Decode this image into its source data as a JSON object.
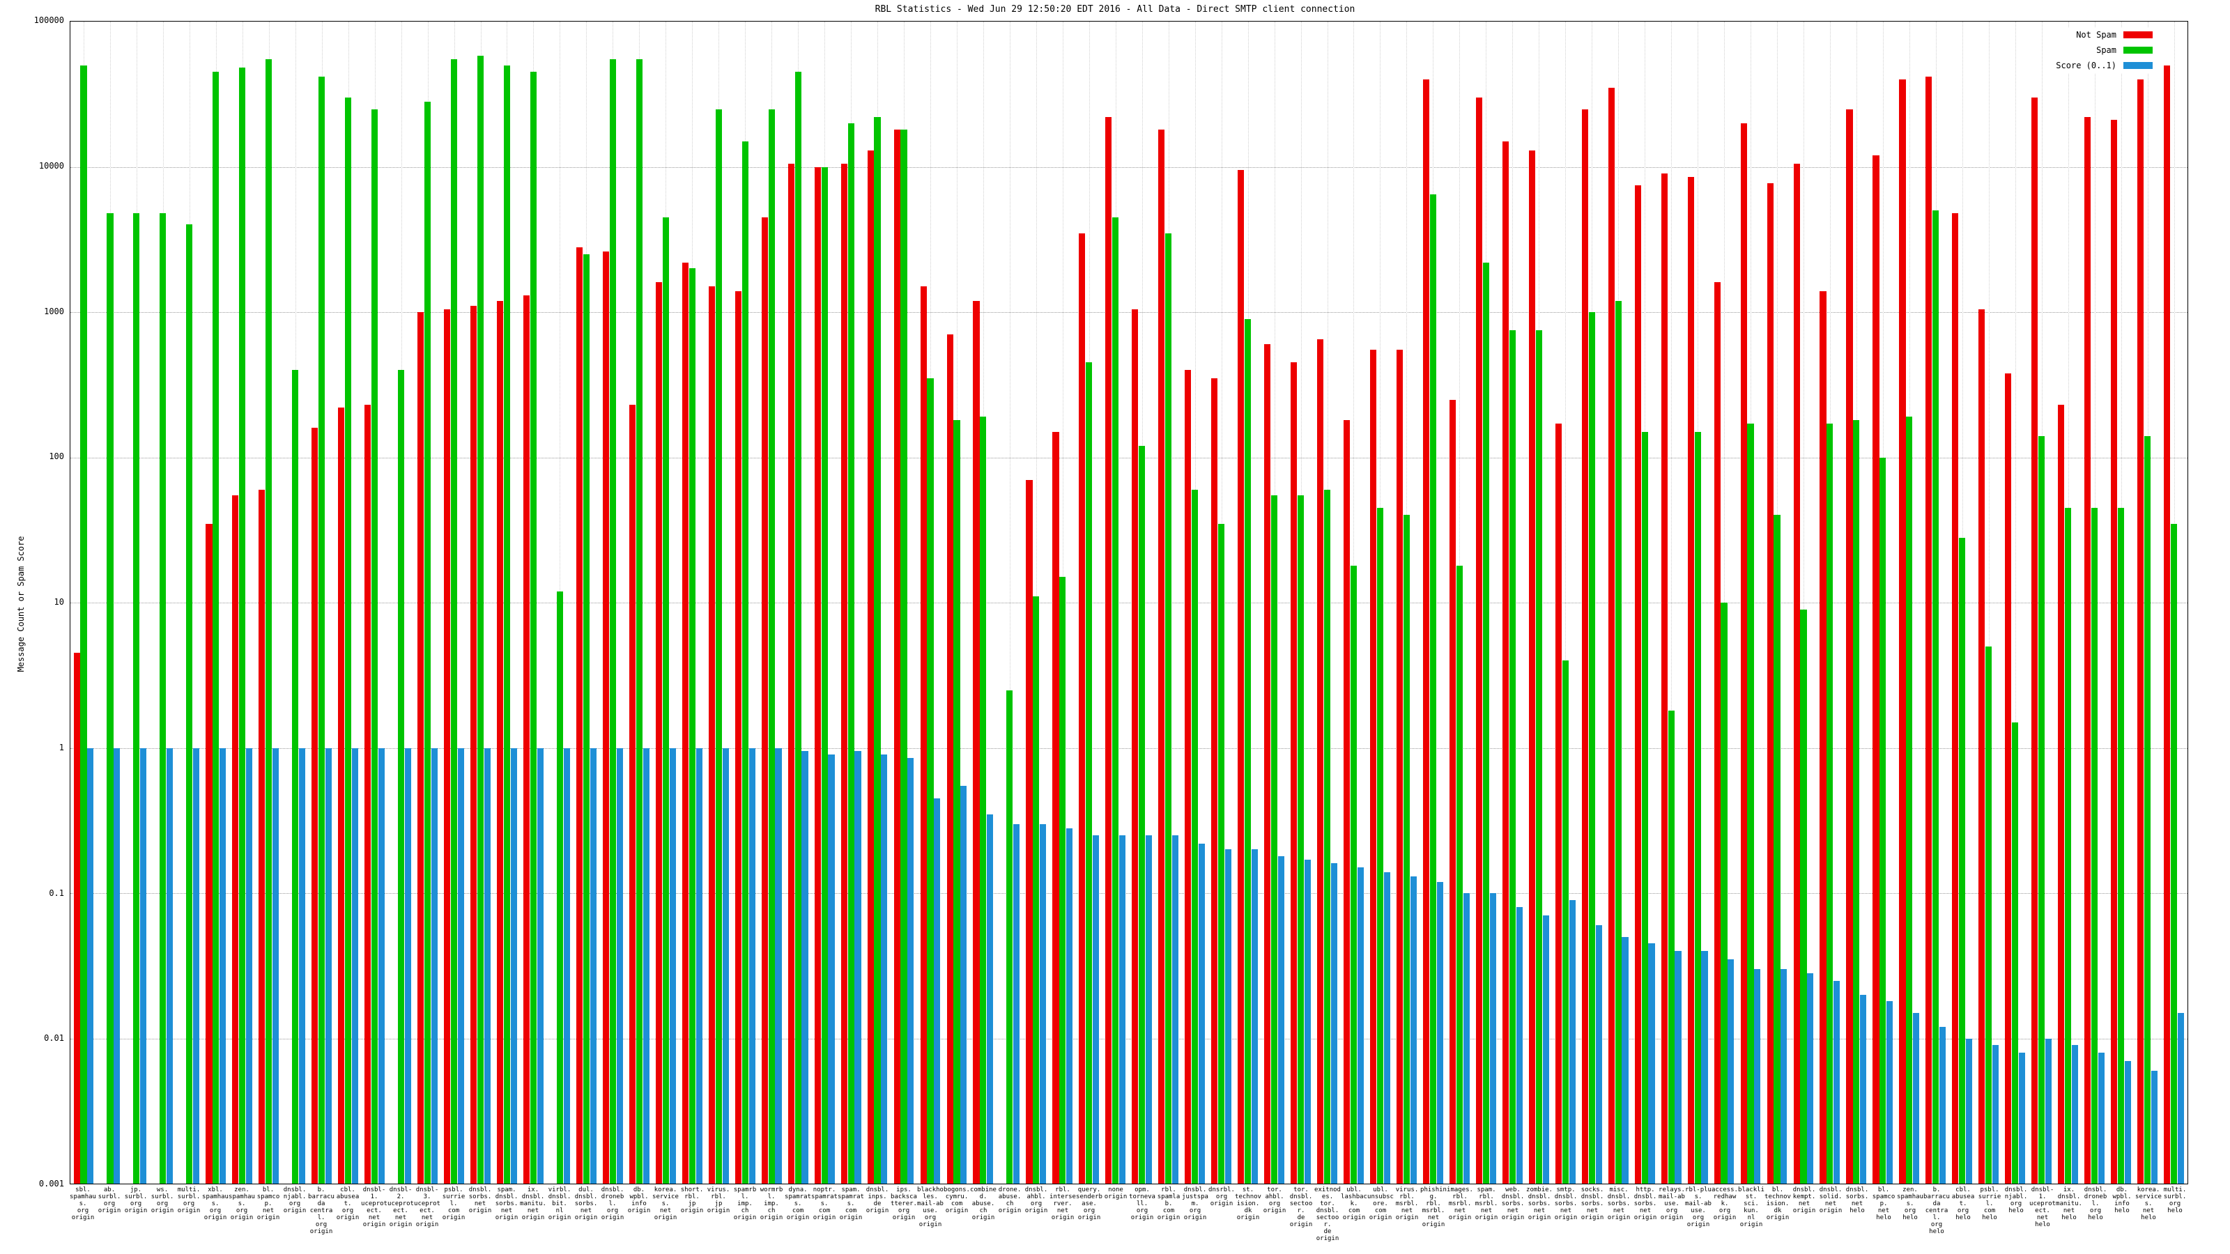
{
  "title": "RBL Statistics - Wed Jun 29 12:50:20 EDT 2016 - All Data - Direct SMTP client connection",
  "ylabel": "Message Count or Spam Score",
  "legend": [
    {
      "label": "Not Spam",
      "color": "#ee0000"
    },
    {
      "label": "Spam",
      "color": "#00c400"
    },
    {
      "label": "Score (0..1)",
      "color": "#1e8fd6"
    }
  ],
  "chart_data": {
    "type": "bar",
    "scale": "log",
    "ylim": [
      0.001,
      100000
    ],
    "grid": true,
    "legend_position": "top-right",
    "yticks": [
      100000,
      10000,
      1000,
      100,
      10,
      1,
      0.1,
      0.01,
      0.001
    ],
    "ytick_labels": [
      "100000",
      "10000",
      "1000",
      "100",
      "10",
      "1",
      "0.1",
      "0.01",
      "0.001"
    ],
    "categories": [
      "sbl.\nspamhaus.\norg\norigin",
      "ab.\nsurbl.\norg\norigin",
      "jp.\nsurbl.\norg\norigin",
      "ws.\nsurbl.\norg\norigin",
      "multi.\nsurbl.\norg\norigin",
      "xbl.\nspamhaus.\norg\norigin",
      "zen.\nspamhaus.\norg\norigin",
      "bl.\nspamcop.\nnet\norigin",
      "dnsbl.\nnjabl.\norg\norigin",
      "b.\nbarracuda\ncentral.\norg\norigin",
      "cbl.\nabuseat.\norg\norigin",
      "dnsbl-1.\nuceprotect.\nnet\norigin",
      "dnsbl-2.\nuceprotect.\nnet\norigin",
      "dnsbl-3.\nuceprotect.\nnet\norigin",
      "psbl.\nsurriel.\ncom\norigin",
      "dnsbl.\nsorbs.\nnet\norigin",
      "spam.\ndnsbl.\nsorbs.\nnet\norigin",
      "ix.\ndnsbl.\nmanitu.\nnet\norigin",
      "virbl.\ndnsbl.\nbit.\nnl\norigin",
      "dul.\ndnsbl.\nsorbs.\nnet\norigin",
      "dnsbl.\ndronebl.\norg\norigin",
      "db.\nwpbl.\ninfo\norigin",
      "korea.\nservices.\nnet\norigin",
      "short.\nrbl.\njp\norigin",
      "virus.\nrbl.\njp\norigin",
      "spamrbl.\nimp.\nch\norigin",
      "wormrbl.\nimp.\nch\norigin",
      "dyna.\nspamrats.\ncom\norigin",
      "noptr.\nspamrats.\ncom\norigin",
      "spam.\nspamrats.\ncom\norigin",
      "dnsbl.\ninps.\nde\norigin",
      "ips.\nbackscatterer.\norg\norigin",
      "blackholes.\nmail-abuse.\norg\norigin",
      "bogons.\ncymru.\ncom\norigin",
      "combined.\nabuse.\nch\norigin",
      "drone.\nabuse.\nch\norigin",
      "dnsbl.\nahbl.\norg\norigin",
      "rbl.\ninterserver.\nnet\norigin",
      "query.\nsenderbase.\norg\norigin",
      "none\norigin",
      "opm.\ntornevall.\norg\norigin",
      "rbl.\nspamlab.\ncom\norigin",
      "dnsbl.\njustspam.\norg\norigin",
      "dnsrbl.\norg\norigin",
      "st.\ntechnovision.\ndk\norigin",
      "tor.\nahbl.\norg\norigin",
      "tor.\ndnsbl.\nsectoor.\nde\norigin",
      "exitnodes.\ntor.\ndnsbl.\nsectoor.\nde\norigin",
      "ubl.\nlashback.\ncom\norigin",
      "ubl.\nunsubscore.\ncom\norigin",
      "virus.\nrbl.\nmsrbl.\nnet\norigin",
      "phishing.\nrbl.\nmsrbl.\nnet\norigin",
      "images.\nrbl.\nmsrbl.\nnet\norigin",
      "spam.\nrbl.\nmsrbl.\nnet\norigin",
      "web.\ndnsbl.\nsorbs.\nnet\norigin",
      "zombie.\ndnsbl.\nsorbs.\nnet\norigin",
      "smtp.\ndnsbl.\nsorbs.\nnet\norigin",
      "socks.\ndnsbl.\nsorbs.\nnet\norigin",
      "misc.\ndnsbl.\nsorbs.\nnet\norigin",
      "http.\ndnsbl.\nsorbs.\nnet\norigin",
      "relays.\nmail-abuse.\norg\norigin",
      "rbl-plus.\nmail-abuse.\norg\norigin",
      "access.\nredhawk.\norg\norigin",
      "blacklist.\nsci.\nkun.\nnl\norigin",
      "bl.\ntechnovision.\ndk\norigin",
      "dnsbl.\nkempt.\nnet\norigin",
      "dnsbl.\nsolid.\nnet\norigin",
      "dnsbl.\nsorbs.\nnet\nhelo",
      "bl.\nspamcop.\nnet\nhelo",
      "zen.\nspamhaus.\norg\nhelo",
      "b.\nbarracuda\ncentral.\norg\nhelo",
      "cbl.\nabuseat.\norg\nhelo",
      "psbl.\nsurriel.\ncom\nhelo",
      "dnsbl.\nnjabl.\norg\nhelo",
      "dnsbl-1.\nuceprotect.\nnet\nhelo",
      "ix.\ndnsbl.\nmanitu.\nnet\nhelo",
      "dnsbl.\ndronebl.\norg\nhelo",
      "db.\nwpbl.\ninfo\nhelo",
      "korea.\nservices.\nnet\nhelo",
      "multi.\nsurbl.\norg\nhelo"
    ],
    "series": [
      {
        "name": "Not Spam",
        "color": "#ee0000",
        "values": [
          4.5,
          0,
          0,
          0,
          0,
          35,
          55,
          60,
          0,
          160,
          220,
          230,
          0,
          1000,
          1050,
          1100,
          1200,
          1300,
          0,
          2800,
          2600,
          230,
          1600,
          2200,
          1500,
          1400,
          4500,
          10500,
          10000,
          10500,
          13000,
          18000,
          1500,
          700,
          1200,
          0,
          70,
          150,
          3500,
          22000,
          1050,
          18000,
          400,
          350,
          9500,
          600,
          450,
          650,
          180,
          550,
          550,
          40000,
          250,
          30000,
          15000,
          13000,
          170,
          25000,
          35000,
          7500,
          9000,
          8500,
          1600,
          20000,
          7700,
          10500,
          1400,
          25000,
          12000,
          40000,
          42000,
          4800,
          1050,
          380,
          30000,
          230,
          22000,
          21000,
          40000,
          50000
        ]
      },
      {
        "name": "Spam",
        "color": "#00c400",
        "values": [
          50000,
          4800,
          4800,
          4800,
          4000,
          45000,
          48000,
          55000,
          400,
          42000,
          30000,
          25000,
          400,
          28000,
          55000,
          58000,
          50000,
          45000,
          12,
          2500,
          55000,
          55000,
          4500,
          2000,
          25000,
          15000,
          25000,
          45000,
          10000,
          20000,
          22000,
          18000,
          350,
          180,
          190,
          2.5,
          11,
          15,
          450,
          4500,
          120,
          3500,
          60,
          35,
          900,
          55,
          55,
          60,
          18,
          45,
          40,
          6500,
          18,
          2200,
          750,
          750,
          4,
          1000,
          1200,
          150,
          1.8,
          150,
          10,
          170,
          40,
          9,
          170,
          180,
          100,
          190,
          5000,
          28,
          5,
          1.5,
          140,
          45,
          45,
          45,
          140,
          35
        ]
      },
      {
        "name": "Score (0..1)",
        "color": "#1e8fd6",
        "values": [
          1,
          1,
          1,
          1,
          1,
          1,
          1,
          1,
          1,
          1,
          1,
          1,
          1,
          1,
          1,
          1,
          1,
          1,
          1,
          1,
          1,
          1,
          1,
          1,
          1,
          1,
          1,
          0.95,
          0.9,
          0.95,
          0.9,
          0.85,
          0.45,
          0.55,
          0.35,
          0.3,
          0.3,
          0.28,
          0.25,
          0.25,
          0.25,
          0.25,
          0.22,
          0.2,
          0.2,
          0.18,
          0.17,
          0.16,
          0.15,
          0.14,
          0.13,
          0.12,
          0.1,
          0.1,
          0.08,
          0.07,
          0.09,
          0.06,
          0.05,
          0.045,
          0.04,
          0.04,
          0.035,
          0.03,
          0.03,
          0.028,
          0.025,
          0.02,
          0.018,
          0.015,
          0.012,
          0.01,
          0.009,
          0.008,
          0.01,
          0.009,
          0.008,
          0.007,
          0.006,
          0.015
        ]
      }
    ],
    "title": "RBL Statistics - Wed Jun 29 12:50:20 EDT 2016 - All Data - Direct SMTP client connection",
    "xlabel": "",
    "ylabel_text": "Message Count or Spam Score"
  }
}
